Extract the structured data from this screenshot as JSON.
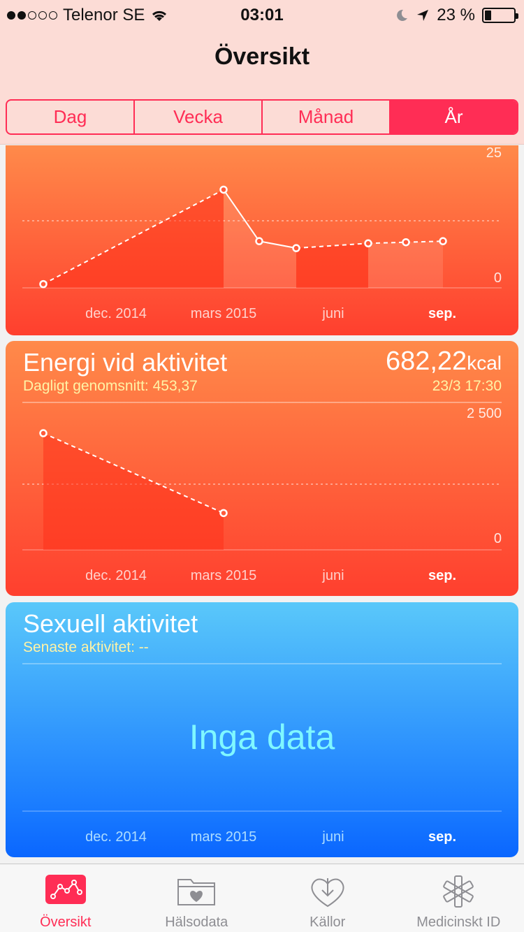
{
  "status_bar": {
    "carrier": "Telenor SE",
    "time": "03:01",
    "battery": "23 %",
    "signal_bars_filled": 2,
    "signal_bars_total": 5,
    "battery_level": 0.23
  },
  "nav": {
    "title": "Översikt"
  },
  "segments": [
    {
      "label": "Dag",
      "active": false
    },
    {
      "label": "Vecka",
      "active": false
    },
    {
      "label": "Månad",
      "active": false
    },
    {
      "label": "År",
      "active": true
    }
  ],
  "x_axis_labels": [
    "dec. 2014",
    "mars 2015",
    "juni",
    "sep."
  ],
  "cards": {
    "top": {
      "ymax_label": "25",
      "ymin_label": "0"
    },
    "energy": {
      "title": "Energi vid aktivitet",
      "subtitle": "Dagligt genomsnitt: 453,37",
      "value": "682,22",
      "unit": "kcal",
      "date": "23/3 17:30",
      "ymax_label": "2 500",
      "ymin_label": "0"
    },
    "sexual": {
      "title": "Sexuell aktivitet",
      "subtitle": "Senaste aktivitet: --",
      "nodata": "Inga data"
    }
  },
  "chart_data": [
    {
      "type": "line",
      "ylim": [
        0,
        25
      ],
      "x": [
        "nov. 2014",
        "feb. 2015",
        "mars 2015",
        "apr. 2015",
        "maj 2015",
        "juni 2015",
        "juli 2015"
      ],
      "values": [
        0.7,
        18.3,
        8.7,
        7.4,
        8.3,
        8.5,
        8.7
      ]
    },
    {
      "type": "line",
      "ylim": [
        0,
        2500
      ],
      "x": [
        "nov. 2014",
        "mars 2015"
      ],
      "values": [
        2220,
        700
      ]
    }
  ],
  "colors": {
    "accent": "#ff2d55",
    "orange_top": "#ff8a4a",
    "orange_bottom": "#ff3f2e",
    "blue_top": "#5ac8fa",
    "blue_bottom": "#0a66ff"
  },
  "tabs": [
    {
      "label": "Översikt",
      "icon": "overview-chart-icon",
      "active": true
    },
    {
      "label": "Hälsodata",
      "icon": "folder-heart-icon",
      "active": false
    },
    {
      "label": "Källor",
      "icon": "heart-download-icon",
      "active": false
    },
    {
      "label": "Medicinskt ID",
      "icon": "medical-star-icon",
      "active": false
    }
  ]
}
